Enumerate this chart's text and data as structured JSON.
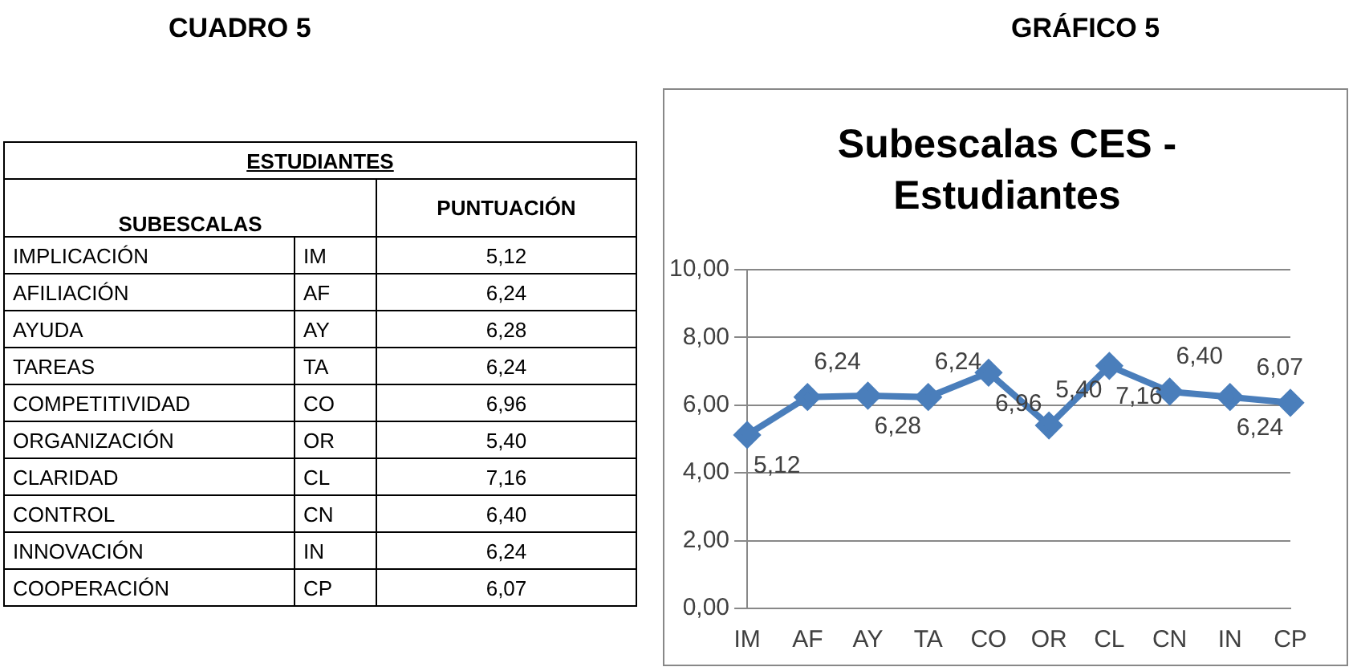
{
  "chart_data": {
    "type": "line",
    "title": "Subescalas CES - Estudiantes",
    "categories": [
      "IM",
      "AF",
      "AY",
      "TA",
      "CO",
      "OR",
      "CL",
      "CN",
      "IN",
      "CP"
    ],
    "series": [
      {
        "color": "#4a7ebb",
        "values": [
          5.12,
          6.24,
          6.28,
          6.24,
          6.96,
          5.4,
          7.16,
          6.4,
          6.24,
          6.07
        ],
        "value_labels": [
          "5,12",
          "6,24",
          "6,28",
          "6,24",
          "6,96",
          "5,40",
          "7,16",
          "6,40",
          "6,24",
          "6,07"
        ]
      }
    ],
    "ylim": [
      0,
      10
    ],
    "yticks": [
      {
        "value": 0,
        "label": "0,00"
      },
      {
        "value": 2,
        "label": "2,00"
      },
      {
        "value": 4,
        "label": "4,00"
      },
      {
        "value": 6,
        "label": "6,00"
      },
      {
        "value": 8,
        "label": "8,00"
      },
      {
        "value": 10,
        "label": "10,00"
      }
    ],
    "grid": "y",
    "legend": false,
    "marker": "diamond",
    "line_style": "solid",
    "annotations": [
      "CUADRO 5",
      "GRÁFICO 5",
      "ESTUDIANTES",
      "SUBESCALAS",
      "PUNTUACIÓN",
      "IMPLICACIÓN",
      "AFILIACIÓN",
      "AYUDA",
      "TAREAS",
      "COMPETITIVIDAD",
      "ORGANIZACIÓN",
      "CLARIDAD",
      "CONTROL",
      "INNOVACIÓN",
      "COOPERACIÓN",
      "IM",
      "AF",
      "AY",
      "TA",
      "CO",
      "OR",
      "CL",
      "CN",
      "IN",
      "CP",
      "5,12",
      "6,24",
      "6,28",
      "6,24",
      "6,96",
      "5,40",
      "7,16",
      "6,40",
      "6,24",
      "6,07"
    ]
  }
}
